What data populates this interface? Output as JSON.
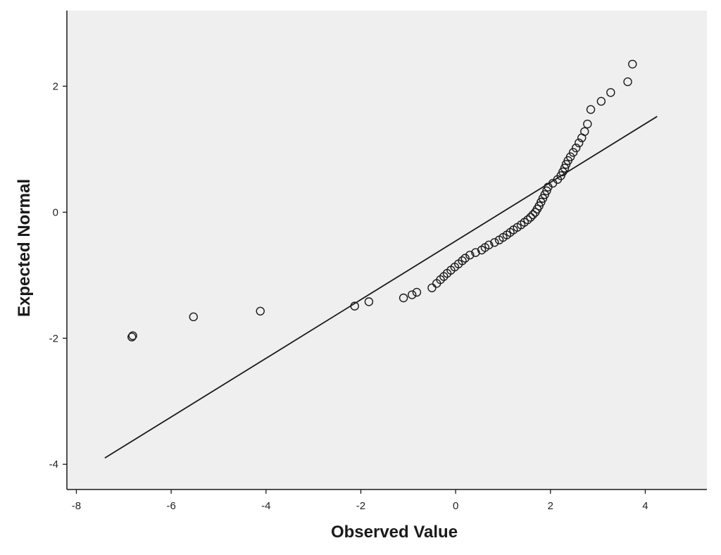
{
  "chart_data": {
    "type": "scatter",
    "title": "",
    "xlabel": "Observed Value",
    "ylabel": "Expected Normal",
    "xlim": [
      -8.2,
      5.3
    ],
    "ylim": [
      -4.4,
      3.2
    ],
    "xticks": [
      "-8",
      "-6",
      "-4",
      "-2",
      "0",
      "2",
      "4"
    ],
    "yticks": [
      "-4",
      "-2",
      "0",
      "2"
    ],
    "grid": false,
    "background": "#efefef",
    "point_color": "#1a1a1a",
    "reference_line": {
      "x": [
        -7.4,
        4.25
      ],
      "y": [
        -3.9,
        1.52
      ]
    },
    "points": {
      "x": [
        -6.83,
        -6.81,
        -5.53,
        -4.12,
        -2.13,
        -1.83,
        -1.1,
        -0.92,
        -0.82,
        -0.5,
        -0.4,
        -0.32,
        -0.25,
        -0.18,
        -0.1,
        -0.02,
        0.06,
        0.14,
        0.2,
        0.3,
        0.42,
        0.55,
        0.62,
        0.7,
        0.82,
        0.92,
        1.0,
        1.08,
        1.15,
        1.22,
        1.3,
        1.38,
        1.45,
        1.52,
        1.58,
        1.63,
        1.68,
        1.72,
        1.76,
        1.8,
        1.84,
        1.88,
        1.92,
        1.95,
        2.05,
        2.15,
        2.22,
        2.26,
        2.3,
        2.33,
        2.37,
        2.42,
        2.48,
        2.54,
        2.6,
        2.66,
        2.72,
        2.78,
        2.85,
        3.07,
        3.27,
        3.63,
        3.73
      ],
      "y": [
        -1.98,
        -1.96,
        -1.66,
        -1.57,
        -1.49,
        -1.42,
        -1.36,
        -1.31,
        -1.27,
        -1.2,
        -1.13,
        -1.07,
        -1.02,
        -0.97,
        -0.92,
        -0.87,
        -0.82,
        -0.77,
        -0.73,
        -0.68,
        -0.64,
        -0.6,
        -0.56,
        -0.52,
        -0.48,
        -0.44,
        -0.4,
        -0.36,
        -0.32,
        -0.28,
        -0.24,
        -0.2,
        -0.16,
        -0.12,
        -0.08,
        -0.04,
        0.0,
        0.05,
        0.1,
        0.16,
        0.22,
        0.28,
        0.34,
        0.4,
        0.46,
        0.52,
        0.58,
        0.64,
        0.7,
        0.76,
        0.82,
        0.88,
        0.95,
        1.02,
        1.1,
        1.18,
        1.28,
        1.4,
        1.63,
        1.76,
        1.9,
        2.07,
        2.35
      ]
    }
  }
}
